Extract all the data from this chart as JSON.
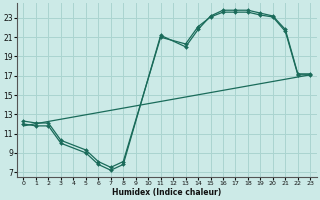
{
  "xlabel": "Humidex (Indice chaleur)",
  "bg_color": "#cceae7",
  "grid_color": "#aad4d0",
  "line_color": "#1a6b5a",
  "xlim": [
    -0.5,
    23.5
  ],
  "ylim": [
    6.5,
    24.5
  ],
  "xticks": [
    0,
    1,
    2,
    3,
    4,
    5,
    6,
    7,
    8,
    9,
    10,
    11,
    12,
    13,
    14,
    15,
    16,
    17,
    18,
    19,
    20,
    21,
    22,
    23
  ],
  "yticks": [
    7,
    9,
    11,
    13,
    15,
    17,
    19,
    21,
    23
  ],
  "line1_x": [
    0,
    1,
    2,
    3,
    5,
    6,
    7,
    8,
    11,
    13,
    14,
    15,
    16,
    17,
    18,
    19,
    20,
    21,
    22,
    23
  ],
  "line1_y": [
    12,
    11.8,
    11.8,
    10.0,
    9.0,
    7.8,
    7.2,
    7.8,
    21.2,
    20.0,
    21.8,
    23.2,
    23.8,
    23.8,
    23.8,
    23.5,
    23.2,
    21.8,
    17.2,
    17.2
  ],
  "line2_x": [
    0,
    1,
    2,
    3,
    5,
    6,
    7,
    8,
    11,
    13,
    14,
    15,
    16,
    17,
    18,
    19,
    20,
    21,
    22,
    23
  ],
  "line2_y": [
    12.3,
    12.1,
    12.1,
    10.3,
    9.3,
    8.1,
    7.5,
    8.1,
    21.0,
    20.3,
    22.1,
    23.1,
    23.6,
    23.6,
    23.6,
    23.3,
    23.1,
    21.6,
    17.1,
    17.1
  ],
  "line3_x": [
    0,
    23
  ],
  "line3_y": [
    11.8,
    17.1
  ]
}
